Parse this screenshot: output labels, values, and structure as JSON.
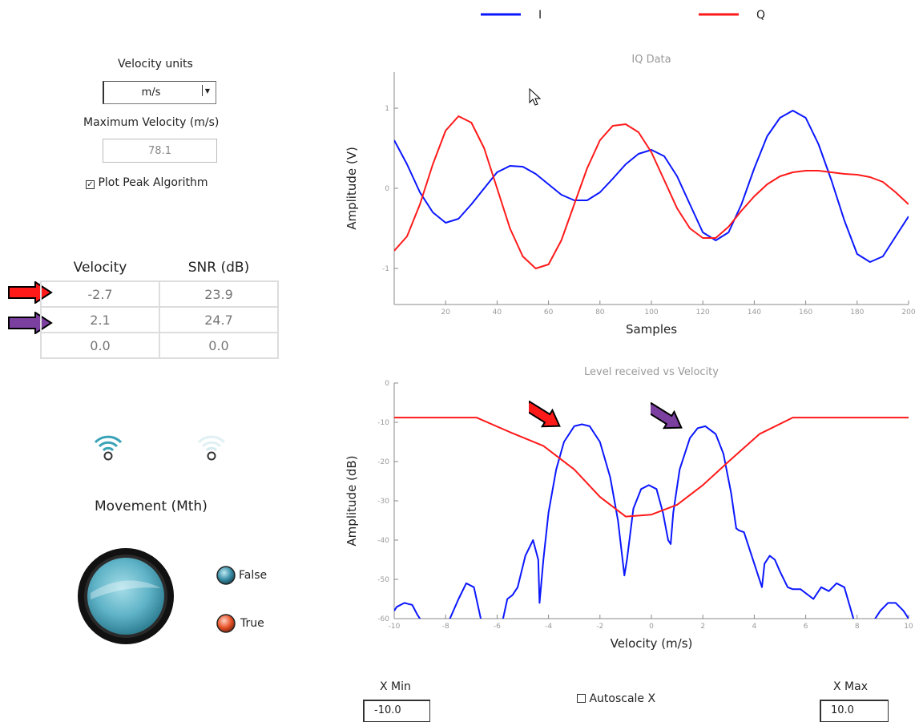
{
  "left_panel": {
    "velocity_units_label": "Velocity units",
    "velocity_units_value": "m/s",
    "max_velocity_label": "Maximum Velocity (m/s)",
    "max_velocity_value": "78.1",
    "plot_peak_label": "Plot Peak Algorithm",
    "plot_peak_checked": true,
    "table": {
      "headers": [
        "Velocity",
        "SNR (dB)"
      ],
      "rows": [
        {
          "velocity": "-2.7",
          "snr": "23.9",
          "marker": "red-arrow"
        },
        {
          "velocity": "2.1",
          "snr": "24.7",
          "marker": "purple-arrow"
        },
        {
          "velocity": "0.0",
          "snr": "0.0",
          "marker": null
        }
      ]
    },
    "movement_label": "Movement (Mth)",
    "indicators": [
      {
        "label": "False",
        "color": "#3a8fa8"
      },
      {
        "label": "True",
        "color": "#e8542a"
      }
    ],
    "signal_icons": [
      "signal-active-icon",
      "signal-inactive-icon"
    ]
  },
  "legend": [
    {
      "label": "I",
      "color": "#0b17ff"
    },
    {
      "label": "Q",
      "color": "#ff1a1a"
    }
  ],
  "chart_data": [
    {
      "type": "line",
      "title": "IQ Data",
      "xlabel": "Samples",
      "ylabel": "Amplitude (V)",
      "xlim": [
        0,
        200
      ],
      "ylim": [
        -1.45,
        1.45
      ],
      "xticks": [
        20,
        40,
        60,
        80,
        100,
        120,
        140,
        160,
        180,
        200
      ],
      "yticks": [
        -1,
        0,
        1
      ],
      "series": [
        {
          "name": "I",
          "color": "#0b17ff",
          "x": [
            0,
            5,
            10,
            15,
            20,
            25,
            30,
            35,
            40,
            45,
            50,
            55,
            60,
            65,
            70,
            75,
            80,
            85,
            90,
            95,
            100,
            105,
            110,
            115,
            120,
            125,
            130,
            135,
            140,
            145,
            150,
            155,
            160,
            165,
            170,
            175,
            180,
            185,
            190,
            195,
            200
          ],
          "y": [
            0.6,
            0.3,
            -0.05,
            -0.3,
            -0.43,
            -0.38,
            -0.2,
            0.0,
            0.2,
            0.28,
            0.27,
            0.18,
            0.05,
            -0.08,
            -0.15,
            -0.15,
            -0.05,
            0.12,
            0.3,
            0.43,
            0.48,
            0.4,
            0.15,
            -0.2,
            -0.55,
            -0.65,
            -0.55,
            -0.2,
            0.25,
            0.65,
            0.88,
            0.97,
            0.88,
            0.55,
            0.1,
            -0.4,
            -0.82,
            -0.92,
            -0.85,
            -0.6,
            -0.35
          ]
        },
        {
          "name": "Q",
          "color": "#ff1a1a",
          "x": [
            0,
            5,
            10,
            15,
            20,
            25,
            30,
            35,
            40,
            45,
            50,
            55,
            60,
            65,
            70,
            75,
            80,
            85,
            90,
            95,
            100,
            105,
            110,
            115,
            120,
            125,
            130,
            135,
            140,
            145,
            150,
            155,
            160,
            165,
            170,
            175,
            180,
            185,
            190,
            195,
            200
          ],
          "y": [
            -0.78,
            -0.6,
            -0.2,
            0.3,
            0.72,
            0.9,
            0.82,
            0.5,
            0.0,
            -0.5,
            -0.85,
            -1.0,
            -0.95,
            -0.65,
            -0.2,
            0.25,
            0.6,
            0.78,
            0.8,
            0.7,
            0.45,
            0.1,
            -0.25,
            -0.5,
            -0.62,
            -0.62,
            -0.48,
            -0.28,
            -0.1,
            0.05,
            0.15,
            0.2,
            0.22,
            0.22,
            0.2,
            0.18,
            0.17,
            0.14,
            0.08,
            -0.05,
            -0.2
          ]
        }
      ]
    },
    {
      "type": "line",
      "title": "Level received vs Velocity",
      "xlabel": "Velocity (m/s)",
      "ylabel": "Amplitude (dB)",
      "xlim": [
        -10,
        10
      ],
      "ylim": [
        -60,
        0
      ],
      "xticks": [
        -10,
        -8,
        -6,
        -4,
        -2,
        0,
        2,
        4,
        6,
        8,
        10
      ],
      "yticks": [
        0,
        -10,
        -20,
        -30,
        -40,
        -50,
        -60
      ],
      "series": [
        {
          "name": "Spectrum",
          "color": "#0b17ff",
          "x": [
            -10,
            -9.9,
            -9.6,
            -9.3,
            -9.1,
            -8.9,
            -8.6,
            -7.9,
            -7.5,
            -7.2,
            -6.9,
            -6.6,
            -6.2,
            -5.8,
            -5.6,
            -5.4,
            -5.2,
            -4.9,
            -4.6,
            -4.4,
            -4.35,
            -4.2,
            -4.0,
            -3.7,
            -3.4,
            -3.0,
            -2.7,
            -2.4,
            -2.0,
            -1.6,
            -1.3,
            -1.05,
            -0.95,
            -0.7,
            -0.4,
            -0.1,
            0.2,
            0.45,
            0.65,
            0.75,
            0.85,
            1.1,
            1.5,
            1.8,
            2.1,
            2.5,
            2.8,
            3.1,
            3.3,
            3.4,
            3.6,
            3.8,
            4.1,
            4.3,
            4.4,
            4.6,
            4.8,
            5.0,
            5.3,
            5.5,
            5.8,
            6.3,
            6.6,
            6.9,
            7.2,
            7.5,
            7.9,
            8.3,
            8.6,
            8.9,
            9.2,
            9.5,
            9.8,
            10
          ],
          "y": [
            -58,
            -57,
            -56,
            -56.5,
            -59,
            -61,
            -61,
            -61,
            -55,
            -51,
            -52,
            -61,
            -61,
            -61,
            -55,
            -54,
            -52,
            -44,
            -40,
            -45,
            -56,
            -45,
            -33,
            -22,
            -15,
            -11,
            -10.5,
            -11,
            -15,
            -24,
            -35,
            -49,
            -45,
            -32,
            -27,
            -26,
            -27,
            -33,
            -40,
            -41,
            -33,
            -22,
            -14,
            -11.5,
            -11,
            -13,
            -18,
            -28,
            -37,
            -37.5,
            -38,
            -42,
            -48,
            -52,
            -46,
            -44,
            -45,
            -48,
            -52,
            -52.5,
            -52.5,
            -55,
            -52,
            -53,
            -51,
            -52,
            -61,
            -61,
            -61,
            -58,
            -56,
            -56,
            -58,
            -60
          ]
        },
        {
          "name": "Threshold",
          "color": "#ff1a1a",
          "x": [
            -10,
            -6.8,
            -5.5,
            -4.2,
            -3,
            -2,
            -1,
            0,
            1,
            2,
            3,
            4.2,
            5.5,
            10
          ],
          "y": [
            -8.8,
            -8.8,
            -12.5,
            -16,
            -22,
            -29,
            -34,
            -33.5,
            -31,
            -26,
            -20,
            -13,
            -8.8,
            -8.8
          ]
        }
      ]
    }
  ],
  "bottom_controls": {
    "xmin_label": "X Min",
    "xmin_value": "-10.0",
    "autoscale_label": "Autoscale X",
    "autoscale_checked": false,
    "xmax_label": "X Max",
    "xmax_value": "10.0"
  },
  "colors": {
    "red_arrow": "#ff1a1a",
    "purple_arrow": "#7b3fa0",
    "signal_active": "#3aa3b8",
    "signal_inactive": "#d8eef2"
  }
}
